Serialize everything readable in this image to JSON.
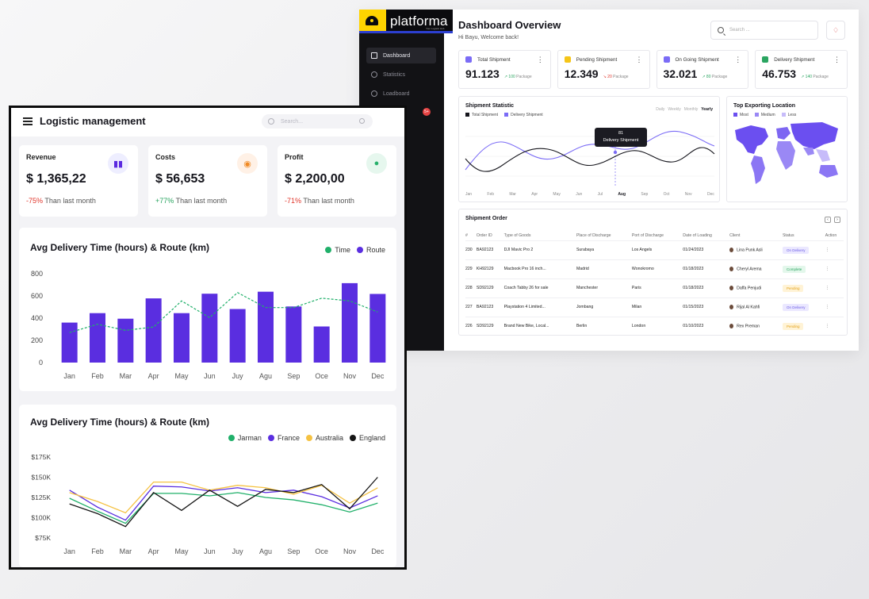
{
  "dashboard": {
    "brand": "platforma",
    "brand_sub": "Your Logistic Hub",
    "nav": [
      {
        "label": "Dashboard",
        "icon": "grid-icon",
        "active": true
      },
      {
        "label": "Statistics",
        "icon": "chart-icon",
        "active": false
      },
      {
        "label": "Loadboard",
        "icon": "box-icon",
        "active": false
      }
    ],
    "nav_badge": "5+",
    "title": "Dashboard Overview",
    "subtitle": "Hi Bayu, Welcome back!",
    "search_placeholder": "Search ...",
    "kpis": [
      {
        "label": "Total Shipment",
        "value": "91.123",
        "delta": "100",
        "unit": "Package",
        "trend": "up",
        "color": "#7b6cf6"
      },
      {
        "label": "Pending Shipment",
        "value": "12.349",
        "delta": "20",
        "unit": "Package",
        "trend": "down",
        "color": "#f5c518"
      },
      {
        "label": "On Going Shipment",
        "value": "32.021",
        "delta": "80",
        "unit": "Package",
        "trend": "up",
        "color": "#7b6cf6"
      },
      {
        "label": "Delivery Shipment",
        "value": "46.753",
        "delta": "140",
        "unit": "Package",
        "trend": "up",
        "color": "#2ba561"
      }
    ],
    "shipment_statistic": {
      "title": "Shipment Statistic",
      "legend": [
        "Total Shipment",
        "Delivery Shipment"
      ],
      "periods": [
        "Daily",
        "Weekly",
        "Monthly",
        "Yearly"
      ],
      "active_period": "Yearly",
      "tooltip_value": "81",
      "tooltip_label": "Delivery Shipment",
      "months": [
        "Jan",
        "Feb",
        "Mar",
        "Apr",
        "May",
        "Jun",
        "Jul",
        "Aug",
        "Sep",
        "Oct",
        "Nov",
        "Dec"
      ],
      "highlight_month": "Aug"
    },
    "top_location": {
      "title": "Top Exporting Location",
      "legend": [
        "Most",
        "Medium",
        "Less"
      ]
    },
    "shipment_order": {
      "title": "Shipment Order",
      "columns": [
        "#",
        "Order ID",
        "Type of Goods",
        "Place of Discharge",
        "Port of Discharge",
        "Date of Loading",
        "Client",
        "Status",
        "Action"
      ],
      "rows": [
        {
          "no": "230",
          "id": "BA92123",
          "goods": "DJI Mavic Pro 2",
          "place": "Surabaya",
          "port": "Los Angels",
          "date": "01/24/2023",
          "client": "Lina Punk Asli",
          "status": "On Delivery"
        },
        {
          "no": "229",
          "id": "KH92129",
          "goods": "Macbook Pro 16 inch...",
          "place": "Madrid",
          "port": "Wonokromo",
          "date": "01/18/2023",
          "client": "Cheryl Arema",
          "status": "Complete"
        },
        {
          "no": "228",
          "id": "SD92129",
          "goods": "Coach Tabby 26 for sale",
          "place": "Manchester",
          "port": "Paris",
          "date": "01/18/2023",
          "client": "Daffa Penjudi",
          "status": "Pending"
        },
        {
          "no": "227",
          "id": "BA92123",
          "goods": "Playstation 4 Limited...",
          "place": "Jombang",
          "port": "Milan",
          "date": "01/15/2023",
          "client": "Rijal Al Kahfi",
          "status": "On Delivery"
        },
        {
          "no": "226",
          "id": "SD92129",
          "goods": "Brand New Bike, Local...",
          "place": "Berlin",
          "port": "London",
          "date": "01/10/2023",
          "client": "Rex Preman",
          "status": "Pending"
        }
      ]
    }
  },
  "logistic": {
    "title": "Logistic management",
    "search_placeholder": "Search...",
    "metrics": [
      {
        "label": "Revenue",
        "value": "$ 1,365,22",
        "delta": "-75%",
        "delta_text": "Than last month",
        "trend": "down",
        "icon": "bar-chart-icon",
        "icon_bg": "#eeeeff",
        "icon_color": "#5b2be0"
      },
      {
        "label": "Costs",
        "value": "$ 56,653",
        "delta": "+77%",
        "delta_text": "Than last month",
        "trend": "up",
        "icon": "money-bag-icon",
        "icon_bg": "#fff1e6",
        "icon_color": "#f08a24"
      },
      {
        "label": "Profit",
        "value": "$ 2,200,00",
        "delta": "-71%",
        "delta_text": "Than last month",
        "trend": "down",
        "icon": "coins-icon",
        "icon_bg": "#e6f7ee",
        "icon_color": "#27b06b"
      }
    ]
  },
  "chart_data": [
    {
      "type": "bar",
      "title": "Avg Delivery Time (hours) & Route (km)",
      "categories": [
        "Jan",
        "Feb",
        "Mar",
        "Apr",
        "May",
        "Jun",
        "Juy",
        "Agu",
        "Sep",
        "Oce",
        "Nov",
        "Dec"
      ],
      "ylim": [
        0,
        800
      ],
      "yticks": [
        0,
        200,
        400,
        600,
        800
      ],
      "legend": "top-right",
      "series": [
        {
          "name": "Route",
          "kind": "bar",
          "color": "#5a2ee0",
          "values": [
            360,
            445,
            395,
            578,
            445,
            620,
            482,
            638,
            505,
            325,
            715,
            618
          ]
        },
        {
          "name": "Time",
          "kind": "dashed-line",
          "color": "#20b06a",
          "values": [
            270,
            345,
            290,
            320,
            555,
            405,
            630,
            495,
            495,
            580,
            555,
            455
          ]
        }
      ]
    },
    {
      "type": "line",
      "title": "Avg Delivery Time (hours) & Route (km)",
      "categories": [
        "Jan",
        "Feb",
        "Mar",
        "Apr",
        "May",
        "Jun",
        "Juy",
        "Agu",
        "Sep",
        "Oce",
        "Nov",
        "Dec"
      ],
      "yticks": [
        "$75K",
        "$100K",
        "$125K",
        "$150K",
        "$175K"
      ],
      "ylim": [
        75000,
        175000
      ],
      "legend": "top-right",
      "series": [
        {
          "name": "Jarman",
          "color": "#20b06a",
          "values": [
            124000,
            108000,
            93000,
            130000,
            130000,
            127000,
            131000,
            125000,
            122000,
            116000,
            107000,
            118000
          ]
        },
        {
          "name": "France",
          "color": "#5a2ee0",
          "values": [
            134000,
            113000,
            97000,
            139000,
            138000,
            133000,
            137000,
            131000,
            134000,
            126000,
            112000,
            127000
          ]
        },
        {
          "name": "Australia",
          "color": "#f5c242",
          "values": [
            131000,
            120000,
            106000,
            144000,
            144000,
            134000,
            140000,
            137000,
            129000,
            140000,
            118000,
            137000
          ]
        },
        {
          "name": "England",
          "color": "#151515",
          "values": [
            117000,
            105000,
            89000,
            131000,
            109000,
            134000,
            114000,
            135000,
            131000,
            141000,
            111000,
            150000
          ]
        }
      ]
    }
  ]
}
